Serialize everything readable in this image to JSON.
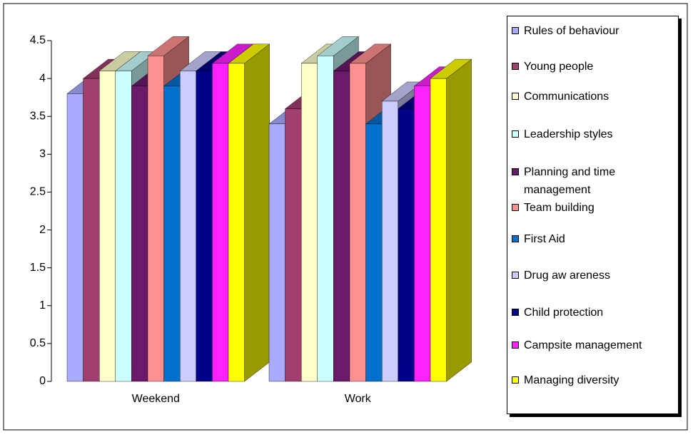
{
  "chart_data": {
    "type": "bar",
    "categories": [
      "Weekend",
      "Work"
    ],
    "series": [
      {
        "name": "Rules of behaviour",
        "color": "#aaaaff",
        "values": [
          3.8,
          3.4
        ]
      },
      {
        "name": "Young people",
        "color": "#a33f6e",
        "values": [
          4.0,
          3.6
        ]
      },
      {
        "name": "Communications",
        "color": "#ffffcc",
        "values": [
          4.1,
          4.2
        ]
      },
      {
        "name": "Leadership styles",
        "color": "#ccffff",
        "values": [
          4.1,
          4.3
        ]
      },
      {
        "name": "Planning and time management",
        "color": "#6a1a6a",
        "values": [
          3.9,
          4.1
        ]
      },
      {
        "name": "Team building",
        "color": "#ff9090",
        "values": [
          4.3,
          4.2
        ]
      },
      {
        "name": "First Aid",
        "color": "#0070cc",
        "values": [
          3.9,
          3.4
        ]
      },
      {
        "name": "Drug aw areness",
        "color": "#ccccff",
        "values": [
          4.1,
          3.7
        ]
      },
      {
        "name": "Child protection",
        "color": "#000088",
        "values": [
          4.1,
          3.6
        ]
      },
      {
        "name": "Campsite management",
        "color": "#ff22ff",
        "values": [
          4.2,
          3.9
        ]
      },
      {
        "name": "Managing diversity",
        "color": "#ffff00",
        "values": [
          4.2,
          4.0
        ]
      }
    ],
    "ylim": [
      0,
      4.5
    ],
    "yticks": [
      0,
      0.5,
      1,
      1.5,
      2,
      2.5,
      3,
      3.5,
      4,
      4.5
    ],
    "legend": "right"
  }
}
